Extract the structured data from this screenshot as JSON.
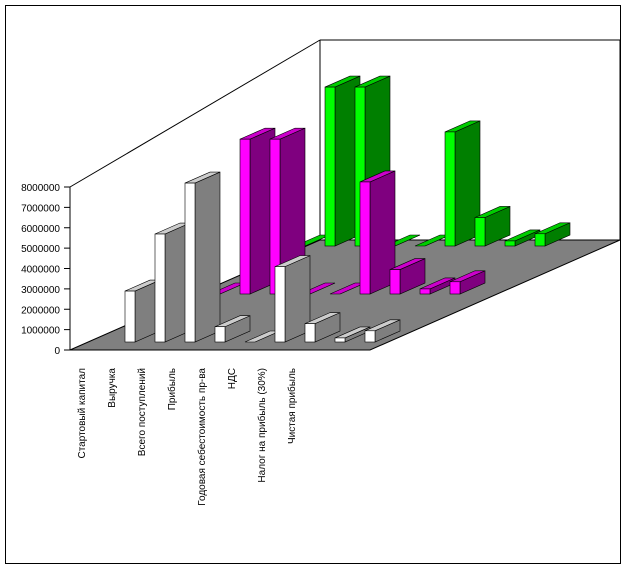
{
  "chart_data": {
    "type": "bar3d",
    "categories": [
      "Стартовый капитал",
      "Выручка",
      "Всего поступлений",
      "Прибыль",
      "Годовая себестоимость пр-ва",
      "НДС",
      "Налог на прибыль (30%)",
      "Чистая прибыль",
      null
    ],
    "series": [
      {
        "color": "#ffffff",
        "values": [
          2500000,
          5300000,
          7800000,
          750000,
          0,
          3700000,
          900000,
          200000,
          550000
        ]
      },
      {
        "color": "#ff00ff",
        "values": [
          0,
          7600000,
          7600000,
          0,
          0,
          5500000,
          1200000,
          250000,
          600000
        ]
      },
      {
        "color": "#00ff00",
        "values": [
          0,
          7800000,
          7800000,
          0,
          0,
          5600000,
          1400000,
          250000,
          600000
        ]
      }
    ],
    "ylim": [
      0,
      8000000
    ],
    "yticks": [
      0,
      1000000,
      2000000,
      3000000,
      4000000,
      5000000,
      6000000,
      7000000,
      8000000
    ]
  }
}
